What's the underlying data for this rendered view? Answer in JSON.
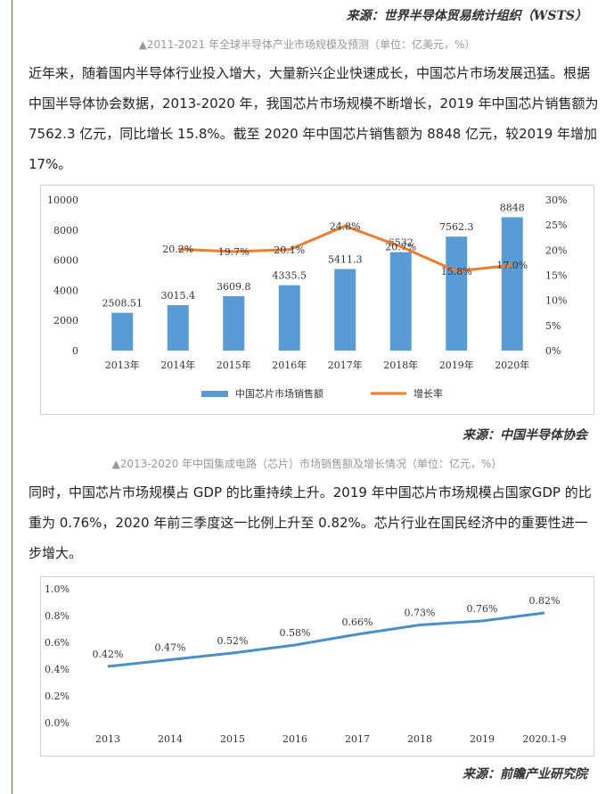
{
  "sources": {
    "wsts": "来源：世界半导体贸易统计组织（WSTS）",
    "csia": "来源：中国半导体协会",
    "qianzhan": "来源：前瞻产业研究院"
  },
  "captions": {
    "global_market": "▲2011-2021 年全球半导体产业市场规模及预测（单位：亿美元，%）",
    "china_chip": "▲2013-2020 年中国集成电路（芯片）市场销售额及增长情况（单位：亿元，%）"
  },
  "paragraphs": {
    "p1": "近年来，随着国内半导体行业投入增大，大量新兴企业快速成长，中国芯片市场发展迅猛。根据中国半导体协会数据，2013-2020 年，我国芯片市场规模不断增长，2019 年中国芯片销售额为 7562.3 亿元，同比增长 15.8%。截至 2020 年中国芯片销售额为 8848 亿元，较2019 年增加 17%。",
    "p2": "同时，中国芯片市场规模占 GDP 的比重持续上升。2019 年中国芯片市场规模占国家GDP 的比重为 0.76%，2020 年前三季度这一比例上升至 0.82%。芯片行业在国民经济中的重要性进一步增大。"
  },
  "colors": {
    "bar": "#5b9bd5",
    "growth_line": "#ed7d31",
    "gdp_line": "#4a90c8",
    "accent_rule": "#c0392b"
  },
  "chart_data": [
    {
      "type": "bar",
      "title": "",
      "categories": [
        "2013年",
        "2014年",
        "2015年",
        "2016年",
        "2017年",
        "2018年",
        "2019年",
        "2020年"
      ],
      "series": [
        {
          "name": "中国芯片市场销售额",
          "type": "bar",
          "axis": "left",
          "values": [
            2508.51,
            3015.4,
            3609.8,
            4335.5,
            5411.3,
            6532,
            7562.3,
            8848
          ],
          "labels": [
            "2508.51",
            "3015.4",
            "3609.8",
            "4335.5",
            "5411.3",
            "6532",
            "7562.3",
            "8848"
          ]
        },
        {
          "name": "增长率",
          "type": "line",
          "axis": "right",
          "values": [
            null,
            20.2,
            19.7,
            20.1,
            24.8,
            20.7,
            15.8,
            17.0
          ],
          "labels": [
            "",
            "20.2%",
            "19.7%",
            "20.1%",
            "24.8%",
            "20.7%",
            "15.8%",
            "17.0%"
          ]
        }
      ],
      "ylim": [
        0,
        10000
      ],
      "yticks": [
        "0",
        "2000",
        "4000",
        "6000",
        "8000",
        "10000"
      ],
      "y2lim": [
        0,
        30
      ],
      "y2ticks": [
        "0%",
        "5%",
        "10%",
        "15%",
        "20%",
        "25%",
        "30%"
      ],
      "legend": "bottom",
      "grid": false
    },
    {
      "type": "line",
      "title": "",
      "categories": [
        "2013",
        "2014",
        "2015",
        "2016",
        "2017",
        "2018",
        "2019",
        "2020.1-9"
      ],
      "series": [
        {
          "values": [
            0.42,
            0.47,
            0.52,
            0.58,
            0.66,
            0.73,
            0.76,
            0.82
          ],
          "labels": [
            "0.42%",
            "0.47%",
            "0.52%",
            "0.58%",
            "0.66%",
            "0.73%",
            "0.76%",
            "0.82%"
          ]
        }
      ],
      "ylim": [
        0,
        1.0
      ],
      "yticks": [
        "0.0%",
        "0.2%",
        "0.4%",
        "0.6%",
        "0.8%",
        "1.0%"
      ],
      "grid": false
    }
  ]
}
